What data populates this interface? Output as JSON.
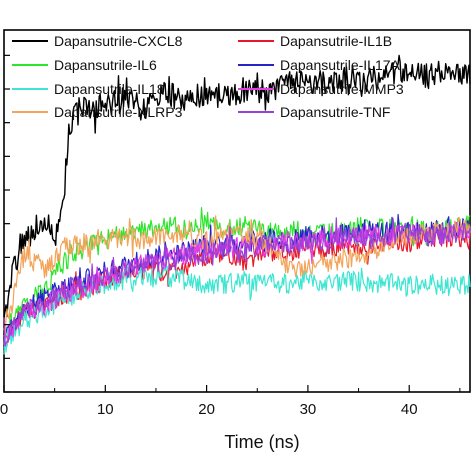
{
  "chart_data": {
    "type": "line",
    "title": "",
    "xlabel": "Time (ns)",
    "ylabel": "",
    "xlim": [
      0,
      46
    ],
    "ylim": [
      0,
      1
    ],
    "x_ticks": [
      0,
      10,
      20,
      30,
      40
    ],
    "grid": false,
    "legend": "top",
    "series": [
      {
        "name": "Dapansutrile-CXCL8",
        "color": "#000000",
        "x": [
          0,
          0.5,
          1,
          2,
          3,
          4,
          5,
          5.5,
          6,
          6.5,
          7,
          8,
          10,
          12,
          14,
          16,
          18,
          20,
          22,
          24,
          26,
          28,
          30,
          32,
          34,
          36,
          38,
          40,
          42,
          44,
          46
        ],
        "y": [
          0.18,
          0.28,
          0.35,
          0.42,
          0.45,
          0.47,
          0.43,
          0.48,
          0.58,
          0.74,
          0.78,
          0.78,
          0.79,
          0.81,
          0.79,
          0.83,
          0.8,
          0.83,
          0.81,
          0.84,
          0.83,
          0.85,
          0.86,
          0.85,
          0.87,
          0.86,
          0.88,
          0.89,
          0.87,
          0.89,
          0.88
        ]
      },
      {
        "name": "Dapansutrile-IL1B",
        "color": "#e8182b",
        "x": [
          0,
          2,
          4,
          6,
          8,
          10,
          12,
          14,
          16,
          18,
          20,
          22,
          24,
          26,
          28,
          30,
          32,
          34,
          36,
          38,
          40,
          42,
          44,
          46
        ],
        "y": [
          0.14,
          0.22,
          0.24,
          0.27,
          0.28,
          0.31,
          0.33,
          0.34,
          0.33,
          0.35,
          0.37,
          0.38,
          0.36,
          0.39,
          0.38,
          0.4,
          0.39,
          0.41,
          0.4,
          0.42,
          0.41,
          0.42,
          0.43,
          0.42
        ]
      },
      {
        "name": "Dapansutrile-IL6",
        "color": "#2ee52e",
        "x": [
          0,
          2,
          4,
          6,
          8,
          10,
          12,
          14,
          16,
          18,
          20,
          22,
          24,
          26,
          28,
          30,
          32,
          34,
          36,
          38,
          40,
          42,
          44,
          46
        ],
        "y": [
          0.16,
          0.24,
          0.28,
          0.36,
          0.4,
          0.42,
          0.44,
          0.45,
          0.46,
          0.45,
          0.47,
          0.45,
          0.46,
          0.44,
          0.45,
          0.43,
          0.44,
          0.45,
          0.46,
          0.45,
          0.46,
          0.44,
          0.45,
          0.46
        ]
      },
      {
        "name": "Dapansutrile-IL17A",
        "color": "#2424c8",
        "x": [
          0,
          2,
          4,
          6,
          8,
          10,
          12,
          14,
          16,
          18,
          20,
          22,
          24,
          26,
          28,
          30,
          32,
          34,
          36,
          38,
          40,
          42,
          44,
          46
        ],
        "y": [
          0.15,
          0.23,
          0.26,
          0.29,
          0.31,
          0.33,
          0.35,
          0.37,
          0.38,
          0.39,
          0.41,
          0.4,
          0.42,
          0.43,
          0.42,
          0.44,
          0.43,
          0.44,
          0.45,
          0.44,
          0.45,
          0.44,
          0.46,
          0.45
        ]
      },
      {
        "name": "Dapansutrile-IL18",
        "color": "#3ee6d2",
        "x": [
          0,
          2,
          4,
          6,
          8,
          10,
          12,
          14,
          16,
          18,
          20,
          22,
          24,
          26,
          28,
          30,
          32,
          34,
          36,
          38,
          40,
          42,
          44,
          46
        ],
        "y": [
          0.13,
          0.2,
          0.22,
          0.26,
          0.28,
          0.3,
          0.31,
          0.32,
          0.32,
          0.31,
          0.3,
          0.3,
          0.31,
          0.3,
          0.3,
          0.31,
          0.3,
          0.31,
          0.3,
          0.3,
          0.29,
          0.3,
          0.29,
          0.3
        ]
      },
      {
        "name": "Dapansutrile-MMP3",
        "color": "#e63ce6",
        "x": [
          0,
          2,
          4,
          6,
          8,
          10,
          12,
          14,
          16,
          18,
          20,
          22,
          24,
          26,
          28,
          30,
          32,
          34,
          36,
          38,
          40,
          42,
          44,
          46
        ],
        "y": [
          0.14,
          0.21,
          0.24,
          0.27,
          0.29,
          0.31,
          0.34,
          0.36,
          0.37,
          0.38,
          0.4,
          0.39,
          0.41,
          0.4,
          0.42,
          0.41,
          0.43,
          0.42,
          0.44,
          0.43,
          0.44,
          0.43,
          0.44,
          0.45
        ]
      },
      {
        "name": "Dapansutrile-NLRP3",
        "color": "#f3a35a",
        "x": [
          0,
          1,
          2,
          3,
          4,
          5,
          6,
          8,
          10,
          12,
          14,
          16,
          18,
          20,
          22,
          24,
          26,
          28,
          30,
          32,
          34,
          36,
          38,
          40,
          42,
          44,
          46
        ],
        "y": [
          0.17,
          0.28,
          0.38,
          0.36,
          0.34,
          0.37,
          0.4,
          0.41,
          0.42,
          0.43,
          0.42,
          0.44,
          0.43,
          0.42,
          0.44,
          0.43,
          0.42,
          0.34,
          0.35,
          0.36,
          0.37,
          0.38,
          0.42,
          0.43,
          0.44,
          0.45,
          0.46
        ]
      },
      {
        "name": "Dapansutrile-TNF",
        "color": "#9b3fd8",
        "x": [
          0,
          2,
          4,
          6,
          8,
          10,
          12,
          14,
          16,
          18,
          20,
          22,
          24,
          26,
          28,
          30,
          32,
          34,
          36,
          38,
          40,
          42,
          44,
          46
        ],
        "y": [
          0.15,
          0.22,
          0.25,
          0.28,
          0.3,
          0.32,
          0.34,
          0.35,
          0.36,
          0.37,
          0.38,
          0.4,
          0.39,
          0.41,
          0.4,
          0.42,
          0.41,
          0.43,
          0.42,
          0.43,
          0.44,
          0.43,
          0.44,
          0.44
        ]
      }
    ]
  }
}
